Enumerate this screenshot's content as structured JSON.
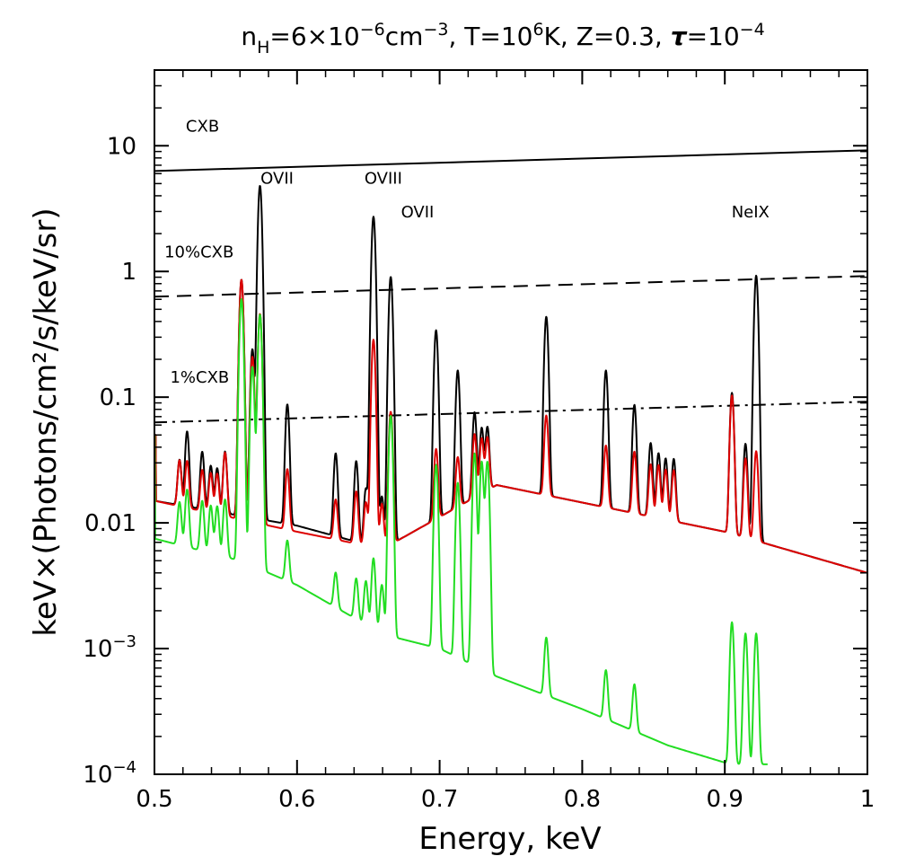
{
  "chart_data": {
    "type": "line",
    "title": "n_H=6×10^-6cm^-3, T=10^6K, Z=0.3, τ=10^-4",
    "title_parts": {
      "n": "n",
      "n_sub": "H",
      "eq1": "=6×10",
      "exp1": "−6",
      "unit1": "cm",
      "exp2": "−3",
      "t_part": ", T=10",
      "exp3": "6",
      "t_rest": "K, Z=0.3, ",
      "tau": "τ",
      "eq2": "=10",
      "exp4": "−4"
    },
    "xlabel": "Energy, keV",
    "ylabel": "keV×(Photons/cm²/s/keV/sr)",
    "xlim": [
      0.5,
      1.0
    ],
    "ylim": [
      0.0001,
      40
    ],
    "yscale": "log",
    "grid": false,
    "legend": "none",
    "x_ticks": [
      {
        "value": 0.5,
        "label": "0.5"
      },
      {
        "value": 0.6,
        "label": "0.6"
      },
      {
        "value": 0.7,
        "label": "0.7"
      },
      {
        "value": 0.8,
        "label": "0.8"
      },
      {
        "value": 0.9,
        "label": "0.9"
      },
      {
        "value": 1.0,
        "label": "1"
      }
    ],
    "y_ticks": [
      {
        "value": 10,
        "mant": "10",
        "exp": ""
      },
      {
        "value": 1,
        "mant": "1",
        "exp": ""
      },
      {
        "value": 0.1,
        "mant": "0.1",
        "exp": ""
      },
      {
        "value": 0.01,
        "mant": "0.01",
        "exp": ""
      },
      {
        "value": 0.001,
        "mant": "10",
        "exp": "−3"
      },
      {
        "value": 0.0001,
        "mant": "10",
        "exp": "−4"
      }
    ],
    "reference_lines": [
      {
        "label": "CXB",
        "x": [
          0.5,
          1.0
        ],
        "y": [
          6.3,
          9.2
        ],
        "style": "solid",
        "label_x": 0.522,
        "label_y": 13
      },
      {
        "label": "10%CXB",
        "x": [
          0.5,
          1.0
        ],
        "y": [
          0.63,
          0.92
        ],
        "style": "dashed",
        "label_x": 0.507,
        "label_y": 1.3
      },
      {
        "label": "1%CXB",
        "x": [
          0.5,
          1.0
        ],
        "y": [
          0.063,
          0.092
        ],
        "style": "dashdot",
        "label_x": 0.511,
        "label_y": 0.13
      }
    ],
    "annotations": [
      {
        "text": "OVII",
        "x": 0.586,
        "y": 5.0
      },
      {
        "text": "OVIII",
        "x": 0.6605,
        "y": 5.0
      },
      {
        "text": "OVII",
        "x": 0.6845,
        "y": 2.7
      },
      {
        "text": "NeIX",
        "x": 0.918,
        "y": 2.7
      }
    ],
    "series": [
      {
        "color": "#000000",
        "continuum": [
          [
            0.5,
            0.015
          ],
          [
            0.6,
            0.0095
          ],
          [
            0.66,
            0.0062
          ],
          [
            0.74,
            0.02
          ],
          [
            0.9,
            0.0085
          ],
          [
            1.0,
            0.004
          ]
        ],
        "edges": [
          [
            0.501,
            0.05
          ],
          [
            0.5005,
            0.01
          ]
        ],
        "lines": [
          [
            0.5176,
            0.018
          ],
          [
            0.5229,
            0.04
          ],
          [
            0.5335,
            0.024
          ],
          [
            0.5395,
            0.016
          ],
          [
            0.544,
            0.015
          ],
          [
            0.5495,
            0.025
          ],
          [
            0.561,
            0.85
          ],
          [
            0.5687,
            0.23
          ],
          [
            0.574,
            4.8
          ],
          [
            0.5932,
            0.078
          ],
          [
            0.6271,
            0.028
          ],
          [
            0.6415,
            0.024
          ],
          [
            0.6483,
            0.012
          ],
          [
            0.6536,
            0.02
          ],
          [
            0.6536,
            2.7
          ],
          [
            0.6595,
            0.01
          ],
          [
            0.6657,
            0.9
          ],
          [
            0.6975,
            0.33
          ],
          [
            0.7127,
            0.15
          ],
          [
            0.7245,
            0.06
          ],
          [
            0.7295,
            0.04
          ],
          [
            0.7335,
            0.04
          ],
          [
            0.7748,
            0.42
          ],
          [
            0.8166,
            0.15
          ],
          [
            0.8366,
            0.075
          ],
          [
            0.848,
            0.032
          ],
          [
            0.8535,
            0.025
          ],
          [
            0.8585,
            0.022
          ],
          [
            0.8642,
            0.022
          ],
          [
            0.905,
            0.1
          ],
          [
            0.9145,
            0.035
          ],
          [
            0.922,
            0.92
          ]
        ]
      },
      {
        "color": "#dd0000",
        "continuum": [
          [
            0.5,
            0.015
          ],
          [
            0.6,
            0.0085
          ],
          [
            0.66,
            0.0062
          ],
          [
            0.74,
            0.02
          ],
          [
            0.9,
            0.0085
          ],
          [
            1.0,
            0.004
          ]
        ],
        "edges": [
          [
            0.501,
            0.05
          ],
          [
            0.5005,
            0.01
          ]
        ],
        "lines": [
          [
            0.5176,
            0.018
          ],
          [
            0.5229,
            0.018
          ],
          [
            0.5335,
            0.014
          ],
          [
            0.5395,
            0.013
          ],
          [
            0.544,
            0.013
          ],
          [
            0.5495,
            0.025
          ],
          [
            0.561,
            0.85
          ],
          [
            0.5687,
            0.2
          ],
          [
            0.574,
            0.45
          ],
          [
            0.5932,
            0.018
          ],
          [
            0.6271,
            0.008
          ],
          [
            0.6415,
            0.011
          ],
          [
            0.6483,
            0.008
          ],
          [
            0.6536,
            0.28
          ],
          [
            0.6595,
            0.008
          ],
          [
            0.6657,
            0.07
          ],
          [
            0.6975,
            0.028
          ],
          [
            0.7127,
            0.02
          ],
          [
            0.7245,
            0.035
          ],
          [
            0.7295,
            0.03
          ],
          [
            0.7335,
            0.03
          ],
          [
            0.7748,
            0.055
          ],
          [
            0.8166,
            0.028
          ],
          [
            0.8366,
            0.025
          ],
          [
            0.848,
            0.018
          ],
          [
            0.8535,
            0.018
          ],
          [
            0.8585,
            0.016
          ],
          [
            0.8642,
            0.016
          ],
          [
            0.905,
            0.095
          ],
          [
            0.9145,
            0.025
          ],
          [
            0.922,
            0.03
          ]
        ]
      },
      {
        "color": "#22dd22",
        "continuum": [
          [
            0.5,
            0.0075
          ],
          [
            0.56,
            0.005
          ],
          [
            0.6,
            0.0032
          ],
          [
            0.66,
            0.0013
          ],
          [
            0.7,
            0.001
          ],
          [
            0.74,
            0.0006
          ],
          [
            0.8,
            0.00033
          ],
          [
            0.86,
            0.00017
          ],
          [
            0.904,
            0.00012
          ]
        ],
        "edges": [
          [
            0.5005,
            0.05
          ]
        ],
        "lines": [
          [
            0.5176,
            0.008
          ],
          [
            0.5229,
            0.012
          ],
          [
            0.5335,
            0.009
          ],
          [
            0.5395,
            0.008
          ],
          [
            0.544,
            0.008
          ],
          [
            0.5495,
            0.01
          ],
          [
            0.561,
            0.6
          ],
          [
            0.5687,
            0.17
          ],
          [
            0.574,
            0.45
          ],
          [
            0.5932,
            0.0038
          ],
          [
            0.6271,
            0.0019
          ],
          [
            0.6415,
            0.0019
          ],
          [
            0.6483,
            0.0019
          ],
          [
            0.6536,
            0.0038
          ],
          [
            0.6595,
            0.0019
          ],
          [
            0.6657,
            0.07
          ],
          [
            0.6975,
            0.028
          ],
          [
            0.7127,
            0.02
          ],
          [
            0.7245,
            0.035
          ],
          [
            0.7295,
            0.03
          ],
          [
            0.7335,
            0.03
          ],
          [
            0.7748,
            0.0008
          ],
          [
            0.8166,
            0.0004
          ],
          [
            0.8366,
            0.0003
          ],
          [
            0.905,
            0.0015
          ],
          [
            0.9145,
            0.0012
          ],
          [
            0.922,
            0.0012
          ]
        ]
      }
    ]
  }
}
